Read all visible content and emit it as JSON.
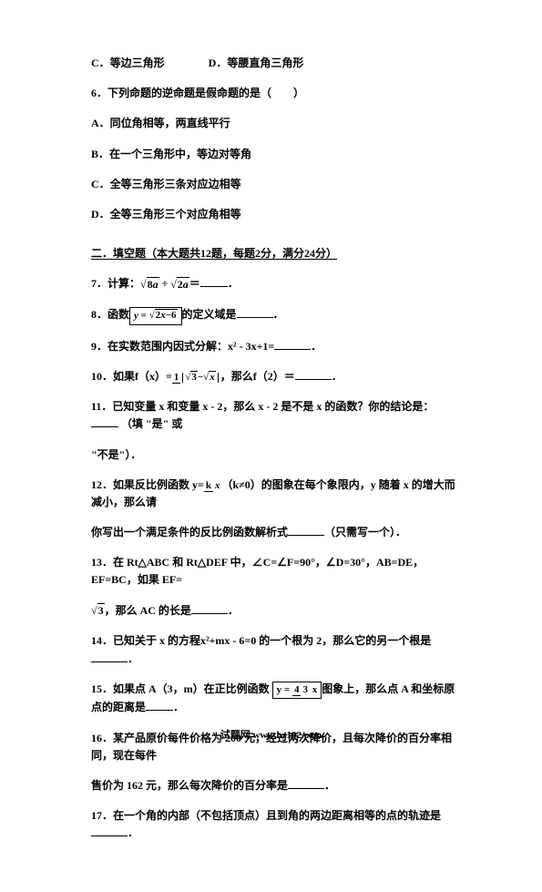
{
  "options": {
    "q_cd": "C．等边三角形　　　　D．等腰直角三角形",
    "q6": "6．下列命题的逆命题是假命题的是（　　）",
    "q6a": "A．同位角相等，两直线平行",
    "q6b": "B．在一个三角形中，等边对等角",
    "q6c": "C．全等三角形三条对应边相等",
    "q6d": "D．全等三角形三个对应角相等"
  },
  "section2": "二．填空题（本大题共12题，每题2分，满分24分）",
  "q7": {
    "prefix": "7．计算：",
    "eq": "＝",
    "suffix": "．"
  },
  "q8": {
    "prefix": "8．函数",
    "mid": "的定义域是",
    "suffix": "．"
  },
  "q9": "9．在实数范围内因式分解：x² - 3x+1=",
  "q9suffix": "．",
  "q10": {
    "prefix": "10．如果f（x）=",
    "mid": "，那么f（2）＝",
    "suffix": "．"
  },
  "q11": {
    "line1": "11．已知变量 x 和变量 x - 2，那么 x - 2 是不是 x 的函数？你的结论是：",
    "line1suffix": "（填 \"是\" 或",
    "line2": "\"不是\"）．"
  },
  "q12": {
    "line1a": "12．如果反比例函数 y=",
    "line1b": "（k≠0）的图象在每个象限内，y 随着 x 的增大而减小，那么请",
    "line2a": "你写出一个满足条件的反比例函数解析式",
    "line2b": "（只需写一个）．"
  },
  "q13": {
    "line1": "13．在 Rt△ABC 和 Rt△DEF 中，∠C=∠F=90°，∠D=30°，AB=DE，EF=BC，如果 EF=",
    "line2a": "，那么 AC 的长是",
    "line2b": "．"
  },
  "q14": {
    "prefix": "14．已知关于 x 的方程x²+mx - 6=0 的一个根为 2，那么它的另一个根是",
    "suffix": "．"
  },
  "q15": {
    "prefix": "15．如果点 A（3，m）在正比例函数",
    "mid": "图象上，那么点 A 和坐标原点的距离是",
    "suffix": "．"
  },
  "q16": {
    "line1": "16．某产品原价每件价格为 200 元，经过两次降价，且每次降价的百分率相同，现在每件",
    "line2a": "售价为 162 元，那么每次降价的百分率是",
    "line2b": "．"
  },
  "q17": {
    "prefix": "17．在一个角的内部（不包括顶点）且到角的两边距离相等的点的轨迹是",
    "suffix": "．"
  },
  "footer": "试题网   www.hz102.com"
}
